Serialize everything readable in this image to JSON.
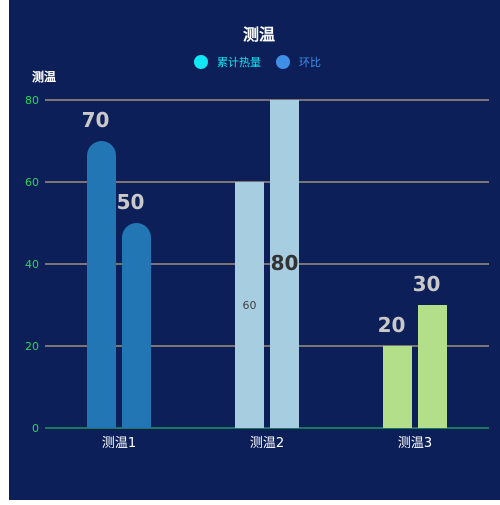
{
  "chart_data": {
    "type": "bar",
    "title": "测温",
    "ylabel": "测温",
    "xlabel": "",
    "legend": {
      "placement": "top-center",
      "items": [
        {
          "label": "累计热量",
          "color": "#11e6f5"
        },
        {
          "label": "环比",
          "color": "#3f8ee8"
        }
      ]
    },
    "categories": [
      "测温1",
      "测温2",
      "测温3"
    ],
    "ylim": [
      0,
      80
    ],
    "yticks": [
      0,
      20,
      40,
      60,
      80
    ],
    "series": [
      {
        "name": "累计热量",
        "values": [
          70,
          60,
          20
        ],
        "colors": [
          "#2176b3",
          "#a6cde0",
          "#b3df8a"
        ],
        "data_labels": [
          "70",
          "60",
          "20"
        ]
      },
      {
        "name": "环比",
        "values": [
          50,
          80,
          30
        ],
        "colors": [
          "#2176b3",
          "#a6cde0",
          "#b3df8a"
        ],
        "data_labels": [
          "50",
          "80",
          "30"
        ]
      }
    ],
    "grid": true,
    "colors": {
      "background": "#0c1f58",
      "grid": "#e8c98c",
      "axis": "#2ad35a",
      "ytick": "#2ad35a",
      "title": "#ffffff",
      "ylabel": "#ffffff"
    }
  }
}
